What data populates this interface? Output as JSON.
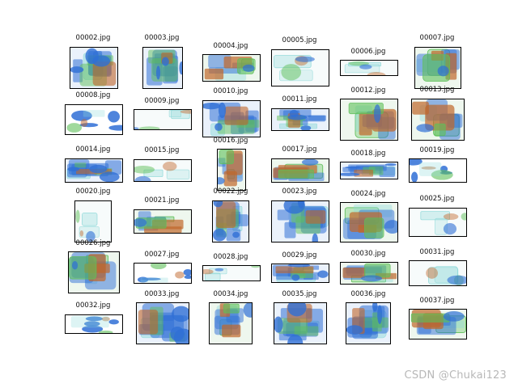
{
  "images": [
    {
      "caption": "00002.jpg",
      "palette": "blue-dense"
    },
    {
      "caption": "00003.jpg",
      "palette": "blue-dense"
    },
    {
      "caption": "00004.jpg",
      "palette": "green-orange"
    },
    {
      "caption": "00005.jpg",
      "palette": "light"
    },
    {
      "caption": "00006.jpg",
      "palette": "light"
    },
    {
      "caption": "00007.jpg",
      "palette": "green-orange"
    },
    {
      "caption": "00008.jpg",
      "palette": "blue-sparse"
    },
    {
      "caption": "00009.jpg",
      "palette": "light"
    },
    {
      "caption": "00010.jpg",
      "palette": "blue-dense"
    },
    {
      "caption": "00011.jpg",
      "palette": "blue-dense"
    },
    {
      "caption": "00012.jpg",
      "palette": "green-orange"
    },
    {
      "caption": "00013.jpg",
      "palette": "green-orange"
    },
    {
      "caption": "00014.jpg",
      "palette": "blue-dense"
    },
    {
      "caption": "00015.jpg",
      "palette": "light"
    },
    {
      "caption": "00016.jpg",
      "palette": "green-orange"
    },
    {
      "caption": "00017.jpg",
      "palette": "green-orange"
    },
    {
      "caption": "00018.jpg",
      "palette": "blue-dense"
    },
    {
      "caption": "00019.jpg",
      "palette": "blue-sparse"
    },
    {
      "caption": "00020.jpg",
      "palette": "light"
    },
    {
      "caption": "00021.jpg",
      "palette": "green-orange"
    },
    {
      "caption": "00022.jpg",
      "palette": "blue-dense"
    },
    {
      "caption": "00023.jpg",
      "palette": "blue-dense"
    },
    {
      "caption": "00024.jpg",
      "palette": "green-orange"
    },
    {
      "caption": "00025.jpg",
      "palette": "light"
    },
    {
      "caption": "00026.jpg",
      "palette": "green-orange"
    },
    {
      "caption": "00027.jpg",
      "palette": "blue-sparse"
    },
    {
      "caption": "00028.jpg",
      "palette": "light"
    },
    {
      "caption": "00029.jpg",
      "palette": "blue-dense"
    },
    {
      "caption": "00030.jpg",
      "palette": "green-orange"
    },
    {
      "caption": "00031.jpg",
      "palette": "light"
    },
    {
      "caption": "00032.jpg",
      "palette": "blue-sparse"
    },
    {
      "caption": "00033.jpg",
      "palette": "blue-dense"
    },
    {
      "caption": "00034.jpg",
      "palette": "green-orange"
    },
    {
      "caption": "00035.jpg",
      "palette": "blue-dense"
    },
    {
      "caption": "00036.jpg",
      "palette": "blue-dense"
    },
    {
      "caption": "00037.jpg",
      "palette": "green-orange"
    }
  ],
  "watermark": "CSDN @Chukai123",
  "colors": {
    "blue": "#2f6fd6",
    "green": "#5fbf5a",
    "orange": "#c0662a",
    "cyan": "#8fd9d9",
    "bg": "#ffffff"
  }
}
